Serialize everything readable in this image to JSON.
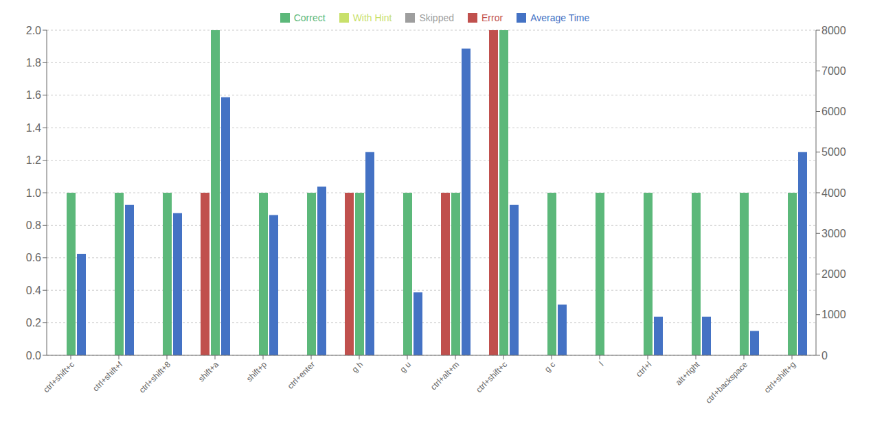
{
  "chart_data": {
    "type": "bar",
    "categories": [
      "ctrl+shift+c",
      "ctrl+shift+f",
      "ctrl+shift+8",
      "shift+a",
      "shift+p",
      "ctrl+enter",
      "g h",
      "g u",
      "ctrl+alt+m",
      "ctrl+shift+c",
      "g c",
      "l",
      "ctrl+l",
      "alt+right",
      "ctrl+backspace",
      "ctrl+shift+g"
    ],
    "series": [
      {
        "name": "Correct",
        "color": "#5cb87a",
        "values": [
          1,
          1,
          1,
          2,
          1,
          1,
          1,
          1,
          1,
          2,
          1,
          1,
          1,
          1,
          1,
          1
        ]
      },
      {
        "name": "With Hint",
        "color": "#c8e06b",
        "values": [
          0,
          0,
          0,
          0,
          0,
          0,
          0,
          0,
          0,
          0,
          0,
          0,
          0,
          0,
          0,
          0
        ]
      },
      {
        "name": "Skipped",
        "color": "#9e9e9e",
        "values": [
          0,
          0,
          0,
          0,
          0,
          0,
          0,
          0,
          0,
          0,
          0,
          0,
          0,
          0,
          0,
          0
        ]
      },
      {
        "name": "Error",
        "color": "#c0504d",
        "values": [
          0,
          0,
          0,
          1,
          0,
          0,
          1,
          0,
          1,
          2,
          0,
          0,
          0,
          0,
          0,
          0
        ]
      },
      {
        "name": "Average Time",
        "color": "#4472c4",
        "axis": "y2",
        "values": [
          2500,
          3700,
          3500,
          6350,
          3450,
          4150,
          5000,
          1550,
          7550,
          3700,
          1250,
          0,
          950,
          950,
          600,
          5000
        ]
      }
    ],
    "ylim": [
      0,
      2.0
    ],
    "yticks": [
      {
        "value": 0,
        "label": "0.0"
      },
      0.2,
      0.4,
      0.6,
      0.8,
      {
        "value": 1,
        "label": "1.0"
      },
      1.2,
      1.4,
      1.6,
      1.8,
      {
        "value": 2,
        "label": "2.0"
      }
    ],
    "y2lim": [
      0,
      8000
    ],
    "y2ticks": [
      0,
      1000,
      2000,
      3000,
      4000,
      5000,
      6000,
      7000,
      8000
    ],
    "grid": true,
    "legend": "top"
  }
}
